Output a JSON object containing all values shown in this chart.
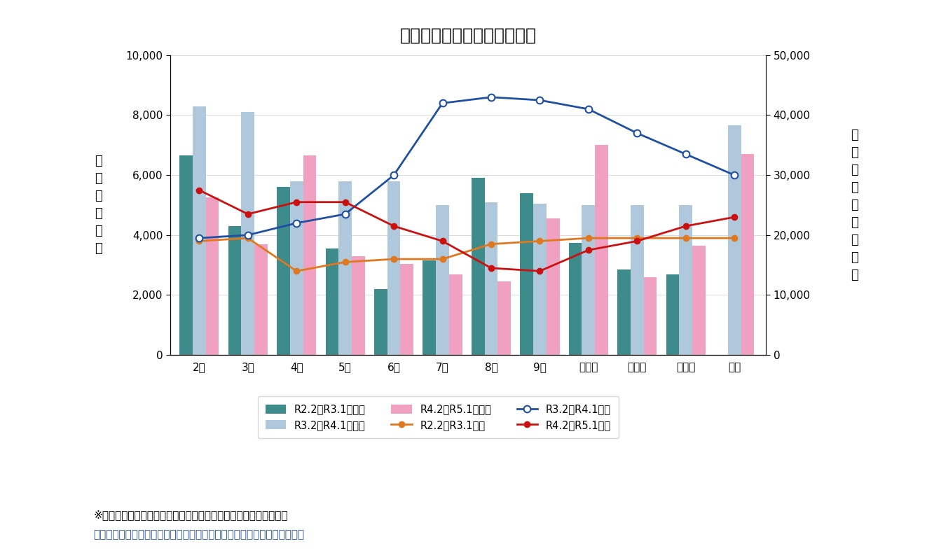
{
  "title": "ヒノキの生産量及び販売単価",
  "months": [
    "2月",
    "3月",
    "4月",
    "5月",
    "6月",
    "7月",
    "8月",
    "9月",
    "１０月",
    "１１月",
    "１２月",
    "１月"
  ],
  "prod_r22_r31": [
    6650,
    4300,
    5600,
    3550,
    2200,
    3150,
    5900,
    5400,
    3750,
    2850,
    2700,
    0
  ],
  "prod_r32_r41": [
    8300,
    8100,
    5800,
    5800,
    5800,
    5000,
    5100,
    5050,
    5000,
    5000,
    5000,
    7650
  ],
  "prod_r42_r51": [
    5250,
    3700,
    6650,
    3300,
    3050,
    2700,
    2450,
    4550,
    7000,
    2600,
    3650,
    6700
  ],
  "price_r22_r31": [
    19000,
    19500,
    14000,
    15500,
    16000,
    16000,
    18500,
    19000,
    19500,
    19500,
    19500,
    19500
  ],
  "price_r32_r41": [
    19500,
    20000,
    22000,
    23500,
    30000,
    42000,
    43000,
    42500,
    41000,
    37000,
    33500,
    30000
  ],
  "price_r42_r51": [
    27500,
    23500,
    25500,
    25500,
    21500,
    19000,
    14500,
    14000,
    17500,
    19000,
    21500,
    23000
  ],
  "bar_color_r22_r31": "#3d8b8b",
  "bar_color_r32_r41": "#b0c8dc",
  "bar_color_r42_r51": "#f0a0c0",
  "line_color_r22_r31": "#e07820",
  "line_color_r32_r41": "#2050a0",
  "line_color_r42_r51": "#cc1010",
  "ylabel_left": "生\n産\n量\n（\n㎥\n）",
  "ylabel_right": "販\n売\n単\n価\n（\n円\n／\n㎥\n）",
  "ylim_left": [
    0,
    10000
  ],
  "ylim_right": [
    0,
    50000
  ],
  "yticks_left": [
    0,
    2000,
    4000,
    6000,
    8000,
    10000
  ],
  "yticks_right": [
    0,
    10000,
    20000,
    30000,
    40000,
    50000
  ],
  "legend_labels": [
    "R2.2～R3.1生産量",
    "R3.2～R4.1生産量",
    "R4.2～R5.1生産量",
    "R2.2～R3.1単価",
    "R3.2～R4.1単価",
    "R4.2～R5.1単価"
  ],
  "note1": "※生産量：県内の森林組合におけるヒノキの生産量（林業課調べ）",
  "note2": "　販売単価：広島県森林組合連合会三次共販所におけるヒノキの販売単価",
  "background_color": "#ffffff",
  "title_fontsize": 18,
  "axis_fontsize": 11,
  "note_fontsize": 11
}
